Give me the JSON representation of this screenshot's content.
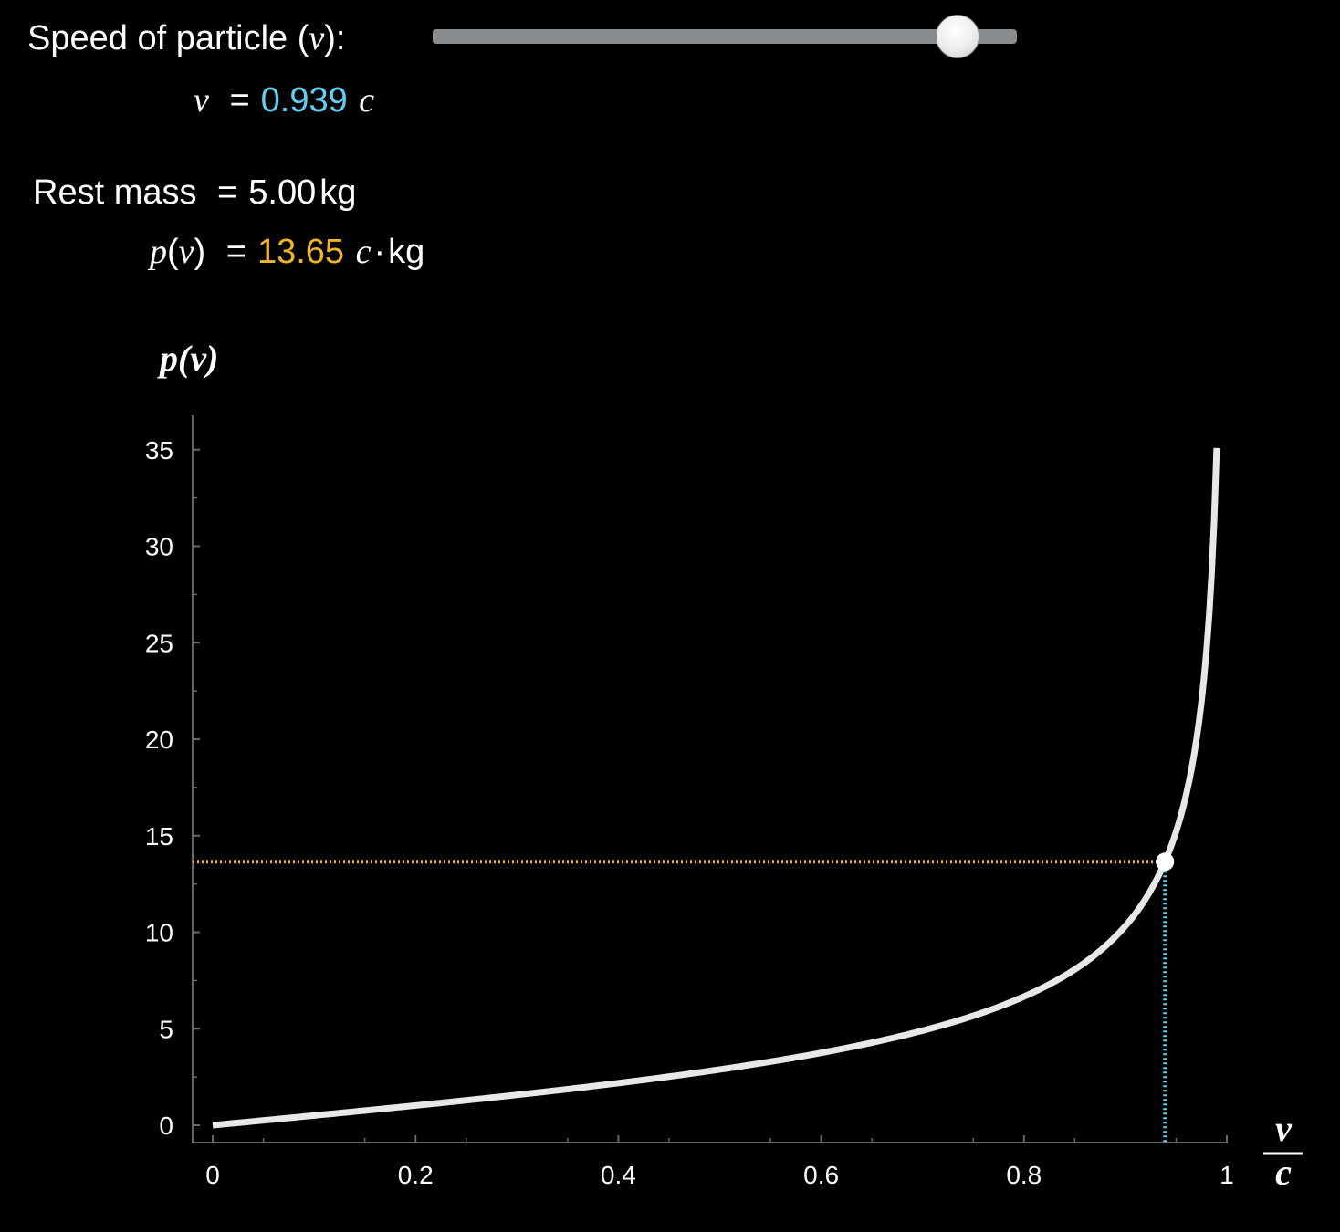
{
  "controls": {
    "speed_label": "Speed of particle (",
    "speed_var": "v",
    "speed_label_end": "):",
    "speed_readout_var": "v",
    "equals": "=",
    "speed_value": "0.939",
    "speed_unit": "c",
    "slider_value": 0.939,
    "slider_range": [
      0,
      1
    ],
    "rest_mass_label": "Rest mass",
    "rest_mass_value": "5.00",
    "rest_mass_unit": "kg",
    "momentum_var": "p",
    "momentum_arg": "v",
    "momentum_value": "13.65",
    "momentum_unit_c": "c",
    "momentum_unit_dot": "·",
    "momentum_unit_kg": "kg"
  },
  "colors": {
    "speed_accent": "#5fd0f5",
    "momentum_accent": "#f0b429",
    "curve": "#e8e8e8",
    "axis": "#666666"
  },
  "chart_data": {
    "type": "line",
    "ylabel": "p(v)",
    "xlabel_num": "v",
    "xlabel_den": "c",
    "xlim": [
      0,
      1
    ],
    "ylim": [
      0,
      36
    ],
    "x_ticks": [
      "0",
      "0.2",
      "0.4",
      "0.6",
      "0.8",
      "1"
    ],
    "x_tick_values": [
      0,
      0.2,
      0.4,
      0.6,
      0.8,
      1
    ],
    "y_ticks": [
      "0",
      "5",
      "10",
      "15",
      "20",
      "25",
      "30",
      "35"
    ],
    "y_tick_values": [
      0,
      5,
      10,
      15,
      20,
      25,
      30,
      35
    ],
    "rest_mass": 5.0,
    "x_max_curve": 0.99,
    "series": [
      {
        "formula": "p = m0 * x / sqrt(1 - x^2)",
        "x": [
          0,
          0.1,
          0.2,
          0.3,
          0.4,
          0.5,
          0.6,
          0.7,
          0.8,
          0.85,
          0.9,
          0.939,
          0.95,
          0.97,
          0.98,
          0.99
        ],
        "values": [
          0,
          0.5,
          1.02,
          1.57,
          2.18,
          2.89,
          3.75,
          4.9,
          6.67,
          8.07,
          10.32,
          13.65,
          15.21,
          19.96,
          24.62,
          35.09
        ]
      }
    ],
    "marker": {
      "x": 0.939,
      "y": 13.65
    },
    "grid": false,
    "legend": "none"
  }
}
